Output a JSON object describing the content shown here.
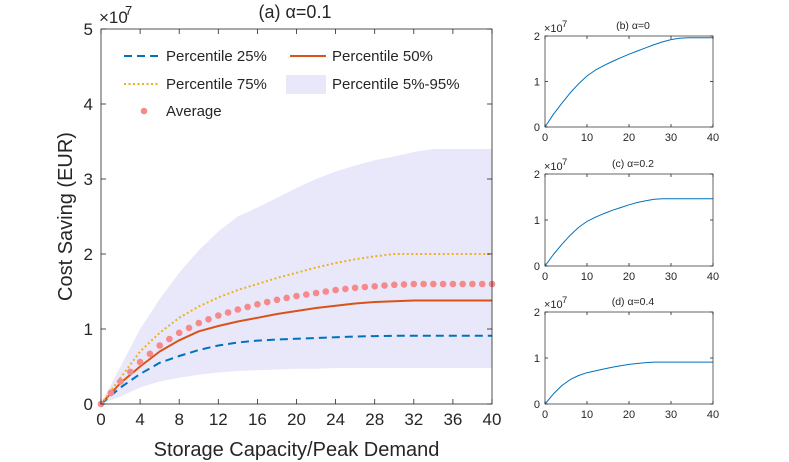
{
  "chart_data": [
    {
      "id": "a",
      "type": "line",
      "title": "(a) α=0.1",
      "xlabel": "Storage Capacity/Peak Demand",
      "ylabel": "Cost Saving (EUR)",
      "y_multiplier": "×10",
      "y_exponent": "7",
      "xlim": [
        0,
        40
      ],
      "ylim": [
        0,
        5
      ],
      "xticks": [
        0,
        4,
        8,
        12,
        16,
        20,
        24,
        28,
        32,
        36,
        40
      ],
      "yticks": [
        0,
        1,
        2,
        3,
        4,
        5
      ],
      "x": [
        0,
        2,
        4,
        6,
        8,
        10,
        12,
        14,
        16,
        18,
        20,
        22,
        24,
        26,
        28,
        30,
        32,
        34,
        36,
        38,
        40
      ],
      "series": [
        {
          "name": "Percentile 25%",
          "style": "dashed",
          "color": "#0072BD",
          "values": [
            0,
            0.22,
            0.4,
            0.55,
            0.64,
            0.72,
            0.78,
            0.82,
            0.845,
            0.86,
            0.87,
            0.88,
            0.89,
            0.9,
            0.905,
            0.91,
            0.91,
            0.91,
            0.91,
            0.91,
            0.91
          ]
        },
        {
          "name": "Percentile 50%",
          "style": "solid",
          "color": "#D95319",
          "values": [
            0,
            0.28,
            0.5,
            0.7,
            0.85,
            0.97,
            1.04,
            1.1,
            1.15,
            1.2,
            1.24,
            1.28,
            1.31,
            1.34,
            1.36,
            1.37,
            1.38,
            1.38,
            1.38,
            1.38,
            1.38
          ]
        },
        {
          "name": "Percentile 75%",
          "style": "dotted",
          "color": "#EDB120",
          "values": [
            0,
            0.35,
            0.7,
            0.95,
            1.15,
            1.3,
            1.42,
            1.52,
            1.6,
            1.68,
            1.75,
            1.82,
            1.88,
            1.93,
            1.97,
            2.0,
            2.0,
            2.0,
            2.0,
            2.0,
            2.0
          ]
        },
        {
          "name": "Average",
          "style": "markers",
          "color": "#F48A8A",
          "values": [
            0,
            0.3,
            0.56,
            0.78,
            0.95,
            1.08,
            1.18,
            1.26,
            1.33,
            1.39,
            1.44,
            1.48,
            1.52,
            1.55,
            1.57,
            1.59,
            1.6,
            1.6,
            1.6,
            1.6,
            1.6
          ]
        }
      ],
      "band": {
        "name": "Percentile 5%-95%",
        "color": "#E8E8FA",
        "lower": [
          0,
          0.1,
          0.22,
          0.3,
          0.35,
          0.39,
          0.42,
          0.44,
          0.45,
          0.46,
          0.47,
          0.47,
          0.48,
          0.48,
          0.48,
          0.48,
          0.48,
          0.48,
          0.48,
          0.48,
          0.48
        ],
        "upper": [
          0,
          0.5,
          1.0,
          1.4,
          1.75,
          2.05,
          2.3,
          2.5,
          2.62,
          2.75,
          2.88,
          3.0,
          3.1,
          3.18,
          3.25,
          3.3,
          3.36,
          3.4,
          3.4,
          3.4,
          3.4
        ]
      },
      "legend": {
        "location": "top-left",
        "entries": [
          "Percentile 25%",
          "Percentile 50%",
          "Percentile 75%",
          "Percentile 5%-95%",
          "Average"
        ]
      }
    },
    {
      "id": "b",
      "type": "line",
      "title": "(b) α=0",
      "y_multiplier": "×10",
      "y_exponent": "7",
      "xlim": [
        0,
        40
      ],
      "ylim": [
        0,
        2
      ],
      "xticks": [
        0,
        10,
        20,
        30,
        40
      ],
      "yticks": [
        0,
        1,
        2
      ],
      "x": [
        0,
        2,
        4,
        6,
        8,
        10,
        12,
        14,
        16,
        18,
        20,
        22,
        24,
        26,
        28,
        30,
        32,
        34,
        36,
        38,
        40
      ],
      "series": [
        {
          "name": "Average",
          "color": "#0072BD",
          "values": [
            0,
            0.28,
            0.52,
            0.75,
            0.95,
            1.12,
            1.25,
            1.35,
            1.44,
            1.52,
            1.6,
            1.67,
            1.74,
            1.81,
            1.87,
            1.92,
            1.95,
            1.96,
            1.96,
            1.96,
            1.96
          ]
        }
      ]
    },
    {
      "id": "c",
      "type": "line",
      "title": "(c) α=0.2",
      "y_multiplier": "×10",
      "y_exponent": "7",
      "xlim": [
        0,
        40
      ],
      "ylim": [
        0,
        2
      ],
      "xticks": [
        0,
        10,
        20,
        30,
        40
      ],
      "yticks": [
        0,
        1,
        2
      ],
      "x": [
        0,
        2,
        4,
        6,
        8,
        10,
        12,
        14,
        16,
        18,
        20,
        22,
        24,
        26,
        28,
        30,
        32,
        34,
        36,
        38,
        40
      ],
      "series": [
        {
          "name": "Average",
          "color": "#0072BD",
          "values": [
            0,
            0.25,
            0.47,
            0.67,
            0.84,
            0.97,
            1.06,
            1.14,
            1.21,
            1.27,
            1.33,
            1.38,
            1.42,
            1.45,
            1.46,
            1.46,
            1.46,
            1.46,
            1.46,
            1.46,
            1.46
          ]
        }
      ]
    },
    {
      "id": "d",
      "type": "line",
      "title": "(d) α=0.4",
      "y_multiplier": "×10",
      "y_exponent": "7",
      "xlim": [
        0,
        40
      ],
      "ylim": [
        0,
        2
      ],
      "xticks": [
        0,
        10,
        20,
        30,
        40
      ],
      "yticks": [
        0,
        1,
        2
      ],
      "x": [
        0,
        2,
        4,
        6,
        8,
        10,
        12,
        14,
        16,
        18,
        20,
        22,
        24,
        26,
        28,
        30,
        32,
        34,
        36,
        38,
        40
      ],
      "series": [
        {
          "name": "Average",
          "color": "#0072BD",
          "values": [
            0,
            0.22,
            0.4,
            0.53,
            0.62,
            0.68,
            0.72,
            0.76,
            0.8,
            0.83,
            0.86,
            0.88,
            0.9,
            0.91,
            0.91,
            0.91,
            0.91,
            0.91,
            0.91,
            0.91,
            0.91
          ]
        }
      ]
    }
  ]
}
